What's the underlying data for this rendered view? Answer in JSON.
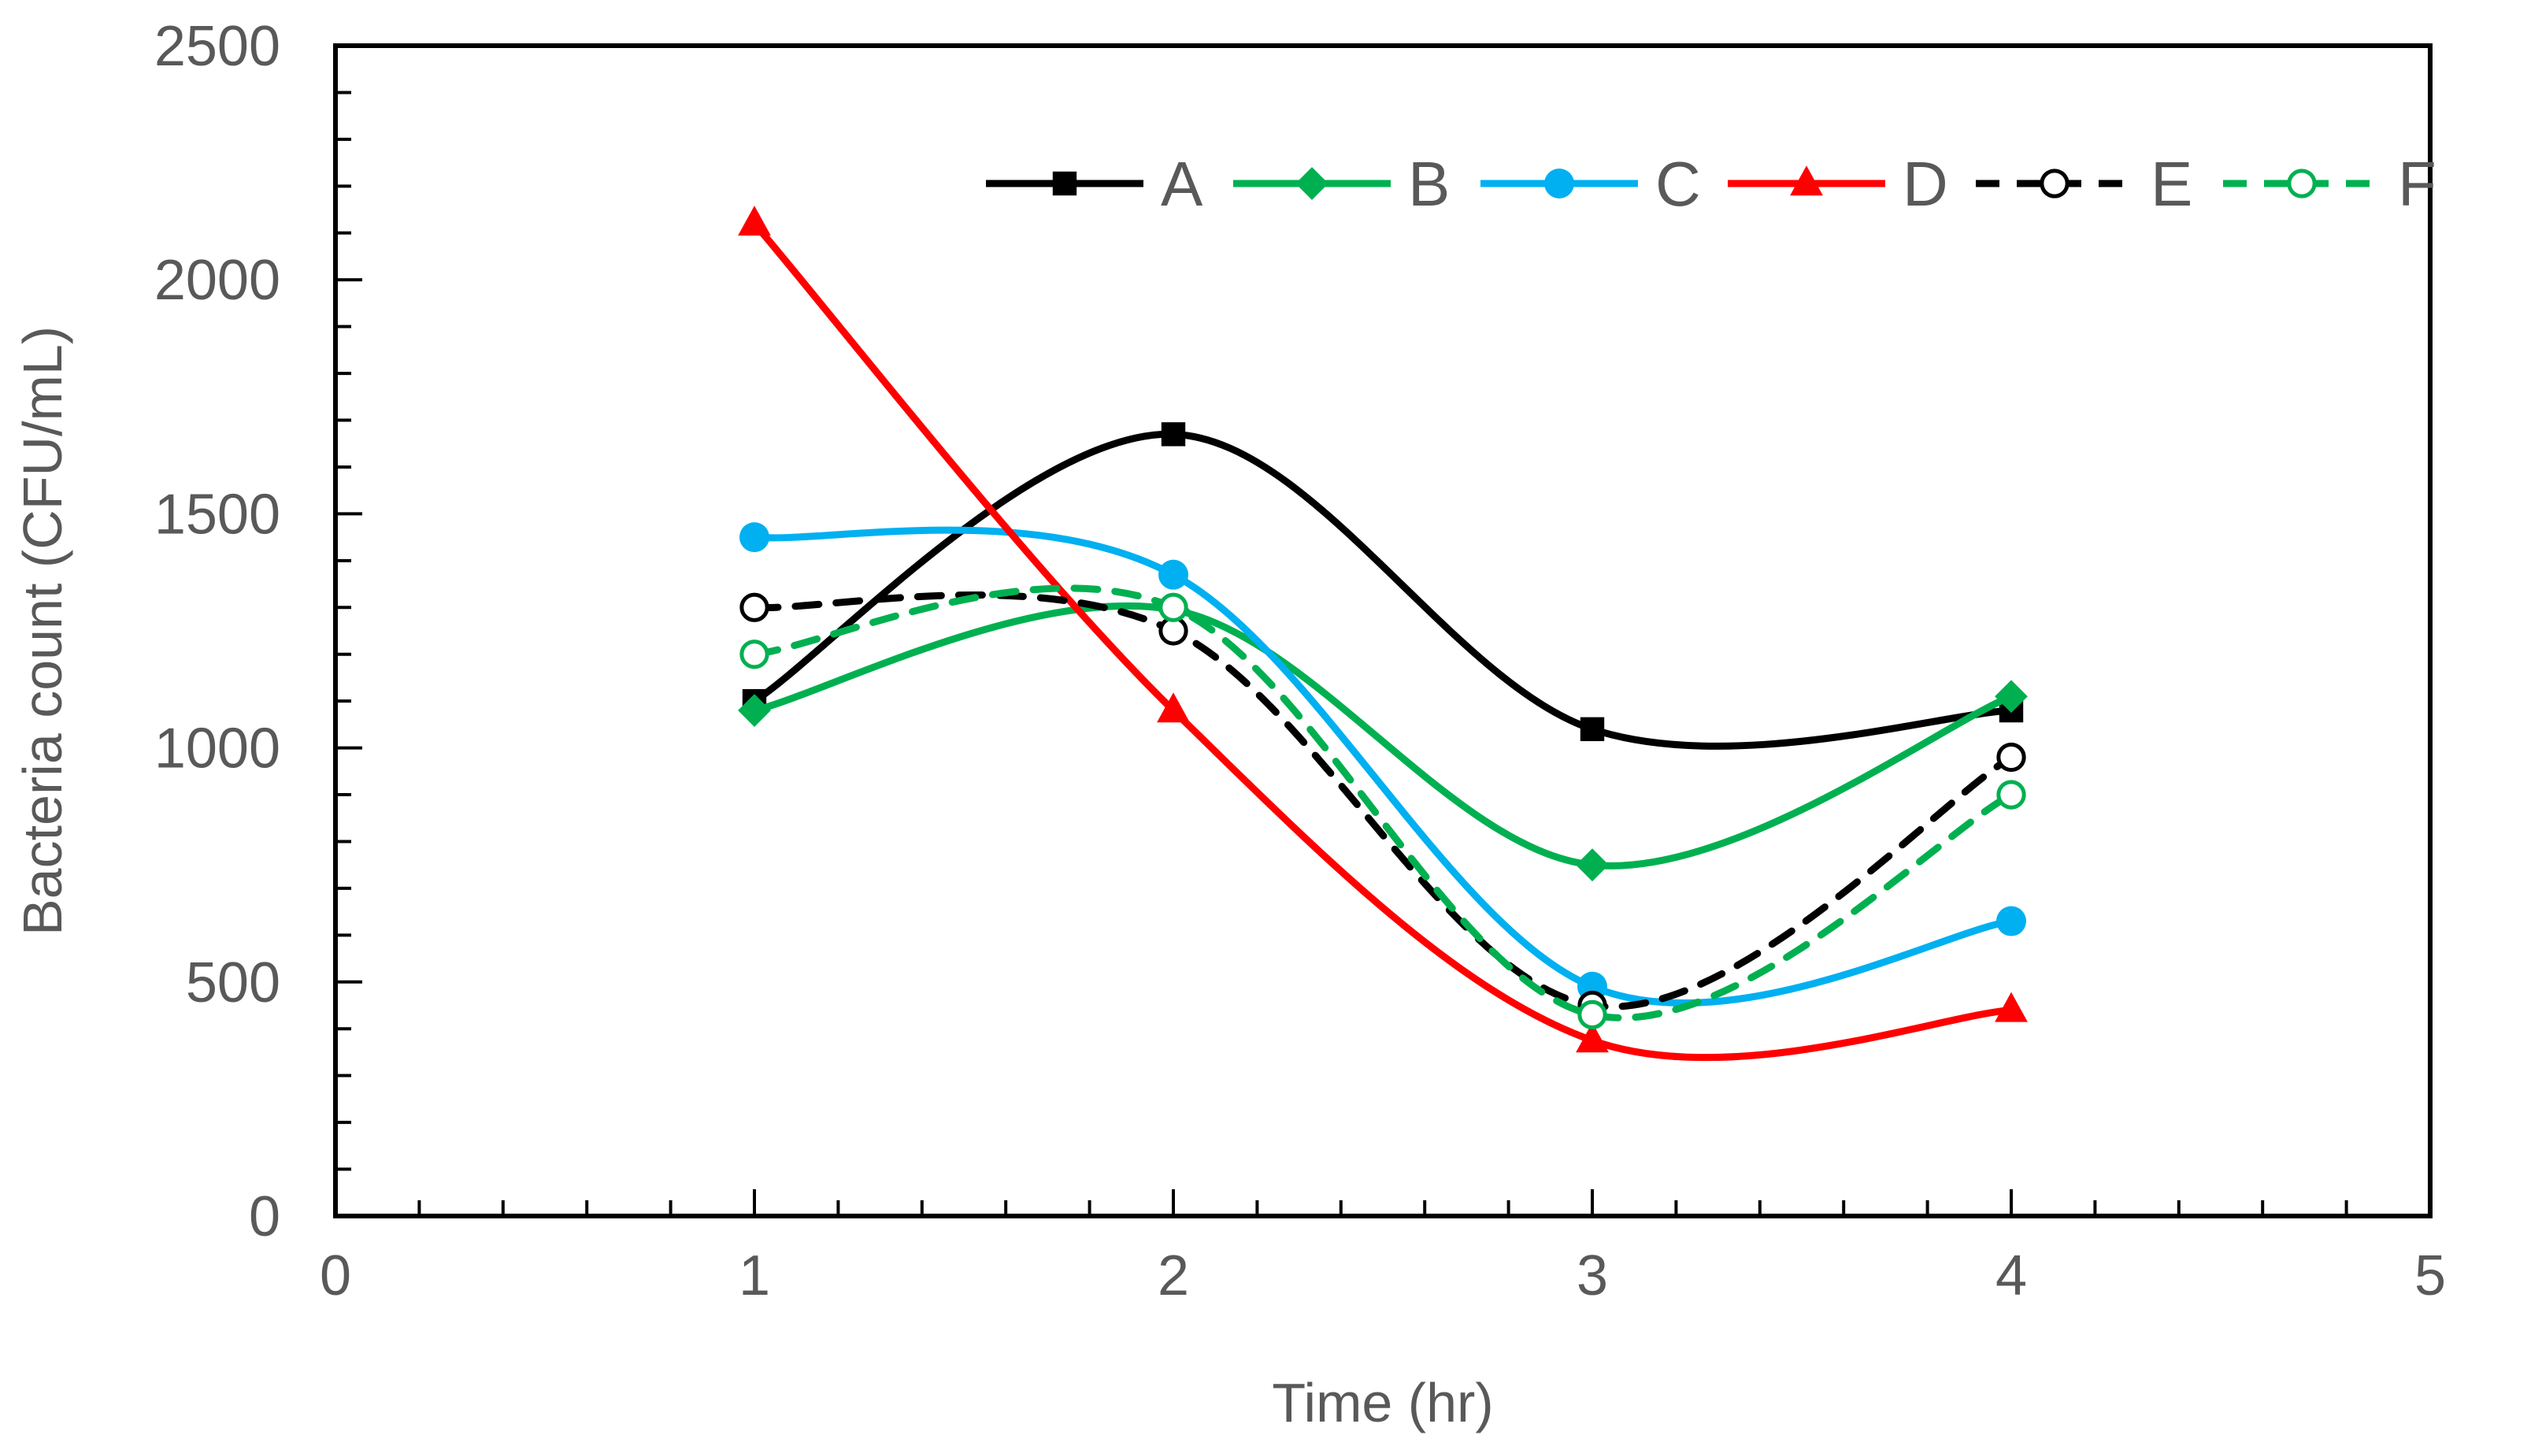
{
  "chart_data": {
    "type": "line",
    "title": "",
    "xlabel": "Time (hr)",
    "ylabel": "Bacteria count (CFU/mL)",
    "xlim": [
      0,
      5
    ],
    "ylim": [
      0,
      2500
    ],
    "x_ticks": [
      "0",
      "1",
      "2",
      "3",
      "4",
      "5"
    ],
    "y_ticks": [
      "0",
      "500",
      "1000",
      "1500",
      "2000",
      "2500"
    ],
    "grid": false,
    "legend_position": "top-right",
    "x": [
      1,
      2,
      3,
      4
    ],
    "series": [
      {
        "name": "A",
        "values": [
          1100,
          1670,
          1040,
          1080
        ],
        "color": "#000000",
        "marker": "square",
        "dashed": false,
        "filled": true
      },
      {
        "name": "B",
        "values": [
          1080,
          1295,
          750,
          1110
        ],
        "color": "#00b050",
        "marker": "diamond",
        "dashed": false,
        "filled": true
      },
      {
        "name": "C",
        "values": [
          1450,
          1370,
          490,
          630
        ],
        "color": "#00b0f0",
        "marker": "circle",
        "dashed": false,
        "filled": true
      },
      {
        "name": "D",
        "values": [
          2120,
          1080,
          375,
          440
        ],
        "color": "#ff0000",
        "marker": "triangle",
        "dashed": false,
        "filled": true
      },
      {
        "name": "E",
        "values": [
          1300,
          1250,
          450,
          980
        ],
        "color": "#000000",
        "marker": "circle",
        "dashed": true,
        "filled": false
      },
      {
        "name": "F",
        "values": [
          1200,
          1300,
          430,
          900
        ],
        "color": "#00b050",
        "marker": "circle",
        "dashed": true,
        "filled": false
      }
    ]
  }
}
